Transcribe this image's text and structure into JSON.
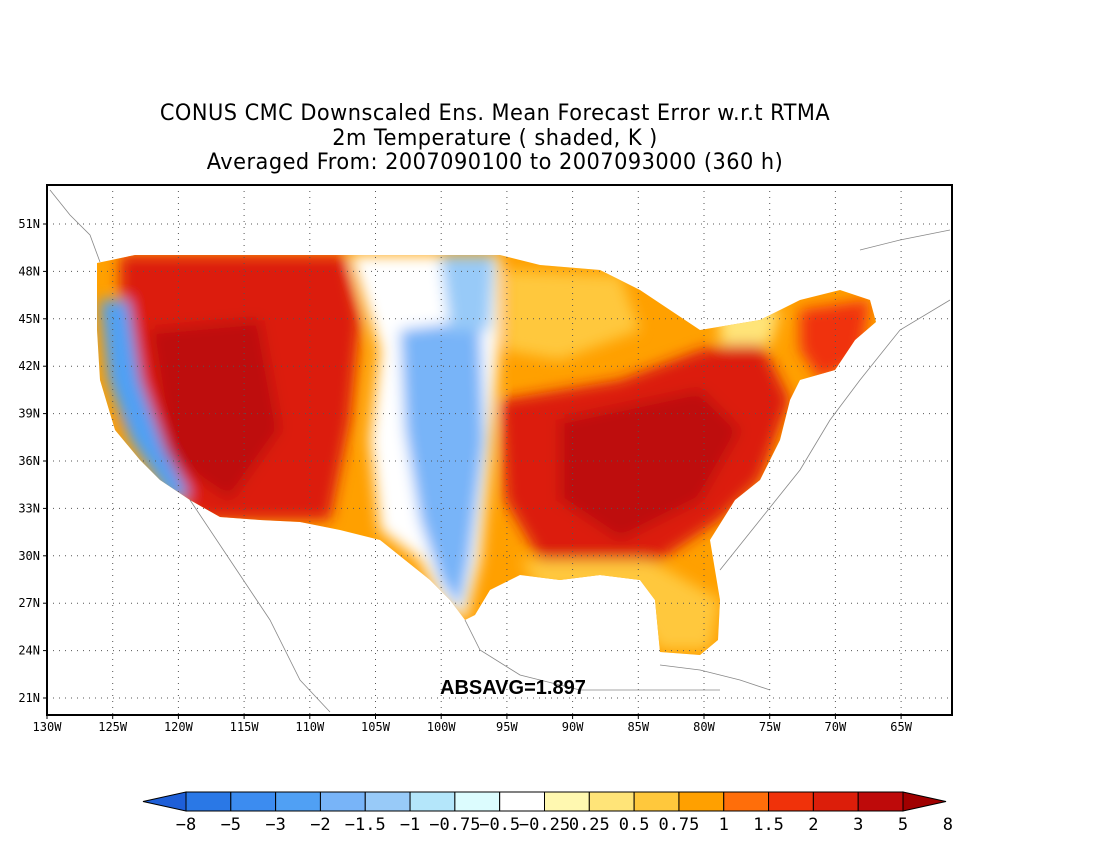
{
  "title": {
    "line1": "CONUS CMC Downscaled Ens. Mean Forecast Error w.r.t RTMA",
    "line2": "2m Temperature ( shaded, K )",
    "line3": "Averaged From: 2007090100 to 2007093000 (360 h)"
  },
  "annotation": "ABSAVG=1.897",
  "lat_labels": [
    "51N",
    "48N",
    "45N",
    "42N",
    "39N",
    "36N",
    "33N",
    "30N",
    "27N",
    "24N",
    "21N"
  ],
  "lon_labels": [
    "130W",
    "125W",
    "120W",
    "115W",
    "110W",
    "105W",
    "100W",
    "95W",
    "90W",
    "85W",
    "80W",
    "75W",
    "70W",
    "65W"
  ],
  "colorbar": {
    "labels": [
      "−8",
      "−5",
      "−3",
      "−2",
      "−1.5",
      "−1",
      "−0.75",
      "−0.5",
      "−0.25",
      "0.25",
      "0.5",
      "0.75",
      "1",
      "1.5",
      "2",
      "3",
      "5",
      "8"
    ],
    "colors": [
      "#1e5fd8",
      "#2a78e6",
      "#3c8cf0",
      "#50a0f4",
      "#78b4f8",
      "#98caf8",
      "#b4e6fa",
      "#dcfcfe",
      "#ffffff",
      "#fff8b0",
      "#ffe478",
      "#ffc83c",
      "#ffa000",
      "#ff6e0a",
      "#f0320a",
      "#dc1e0a",
      "#be0a0a",
      "#a00000"
    ]
  },
  "colors": {
    "frame": "#000000",
    "grid": "#555555",
    "coast": "#888888"
  }
}
